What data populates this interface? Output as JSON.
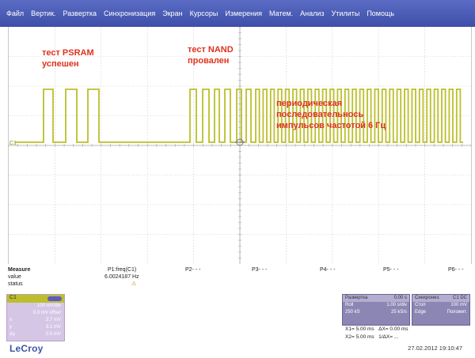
{
  "menu": [
    "Файл",
    "Вертик.",
    "Развертка",
    "Синхронизация",
    "Экран",
    "Курсоры",
    "Измерения",
    "Матем.",
    "Анализ",
    "Утилиты",
    "Помощь"
  ],
  "annotations": {
    "psram": [
      "тест PSRAM",
      "успешен"
    ],
    "nand": [
      "тест NAND",
      "провален"
    ],
    "periodic": [
      "периодическая",
      "последовательнось",
      "импульсов частотой 6 Гц"
    ]
  },
  "channel_marker": "C1",
  "measure": {
    "label": "Measure",
    "value_label": "value",
    "status_label": "status",
    "params": [
      "P1:freq(C1)",
      "P2- - -",
      "P3- - -",
      "P4- - -",
      "P5- - -",
      "P6- - -"
    ],
    "value": "6.0024187 Hz",
    "status": "⚠"
  },
  "channel_box": {
    "name": "C1",
    "rows": [
      "100 mV/div",
      "0.0 mV offset"
    ],
    "labels": [
      "x",
      "y",
      "Δy"
    ],
    "label_values": [
      "2.7 mV",
      "3.1 mV",
      "0.0 mV"
    ]
  },
  "timebase": {
    "title": "Развертка",
    "title_value": "0.00 s",
    "rows": [
      [
        "Roll",
        "1.00 s/div"
      ],
      [
        "250 kS",
        "25 kS/s"
      ]
    ]
  },
  "trigger": {
    "title": "Синхрониз.",
    "title_value": "C1 DC",
    "rows": [
      [
        "Стоп",
        "100 mV"
      ],
      [
        "Edge",
        "Положит."
      ]
    ]
  },
  "cursors": {
    "x1": "X1=",
    "x1_val": "5.00 ms",
    "dx": "ΔX=",
    "dx_val": "0.00 ms",
    "x2": "X2=",
    "x2_val": "5.00 ms",
    "inv": "1/ΔX=",
    "inv_val": "..."
  },
  "logo": "LeCroy",
  "datetime": "27.02.2012 19:10:47",
  "colors": {
    "trace": "#bcbf2a",
    "menu": "#3d4fa8",
    "annotation": "#e0321e"
  }
}
